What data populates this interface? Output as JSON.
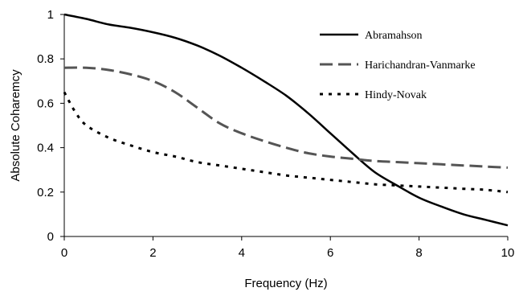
{
  "chart_data": {
    "type": "line",
    "title": "",
    "xlabel": "Frequency (Hz)",
    "ylabel": "Absolute Coharemcy",
    "xlim": [
      0,
      10
    ],
    "ylim": [
      0,
      1
    ],
    "x_ticks": [
      "0",
      "2",
      "4",
      "6",
      "8",
      "10"
    ],
    "y_ticks": [
      "0",
      "0.2",
      "0.4",
      "0.6",
      "0.8",
      "1"
    ],
    "grid": false,
    "legend_position": "top-right",
    "series": [
      {
        "name": "Abramahson",
        "style": "solid",
        "color": "#000000",
        "x": [
          0,
          0.5,
          1,
          1.5,
          2,
          2.5,
          3,
          3.5,
          4,
          4.5,
          5,
          5.5,
          6,
          6.5,
          7,
          7.5,
          8,
          8.5,
          9,
          9.5,
          10
        ],
        "y": [
          1.0,
          0.98,
          0.955,
          0.94,
          0.92,
          0.895,
          0.86,
          0.815,
          0.76,
          0.7,
          0.635,
          0.555,
          0.465,
          0.375,
          0.29,
          0.23,
          0.175,
          0.135,
          0.1,
          0.075,
          0.05
        ]
      },
      {
        "name": "Harichandran-Vanmarke",
        "style": "long-dash",
        "color": "#555555",
        "x": [
          0,
          0.5,
          1,
          1.5,
          2,
          2.5,
          3,
          3.5,
          4,
          4.5,
          5,
          5.5,
          6,
          6.5,
          7,
          7.5,
          8,
          8.5,
          9,
          9.5,
          10
        ],
        "y": [
          0.76,
          0.76,
          0.75,
          0.73,
          0.7,
          0.65,
          0.58,
          0.51,
          0.465,
          0.43,
          0.4,
          0.375,
          0.36,
          0.35,
          0.34,
          0.335,
          0.33,
          0.325,
          0.32,
          0.315,
          0.31
        ]
      },
      {
        "name": "Hindy-Novak",
        "style": "dotted",
        "color": "#000000",
        "x": [
          0,
          0.25,
          0.5,
          1,
          1.5,
          2,
          2.5,
          3,
          3.5,
          4,
          4.5,
          5,
          5.5,
          6,
          6.5,
          7,
          7.5,
          8,
          8.5,
          9,
          9.5,
          10
        ],
        "y": [
          0.65,
          0.56,
          0.5,
          0.445,
          0.41,
          0.38,
          0.36,
          0.335,
          0.32,
          0.305,
          0.29,
          0.275,
          0.265,
          0.255,
          0.245,
          0.235,
          0.23,
          0.225,
          0.22,
          0.215,
          0.21,
          0.2
        ]
      }
    ]
  }
}
